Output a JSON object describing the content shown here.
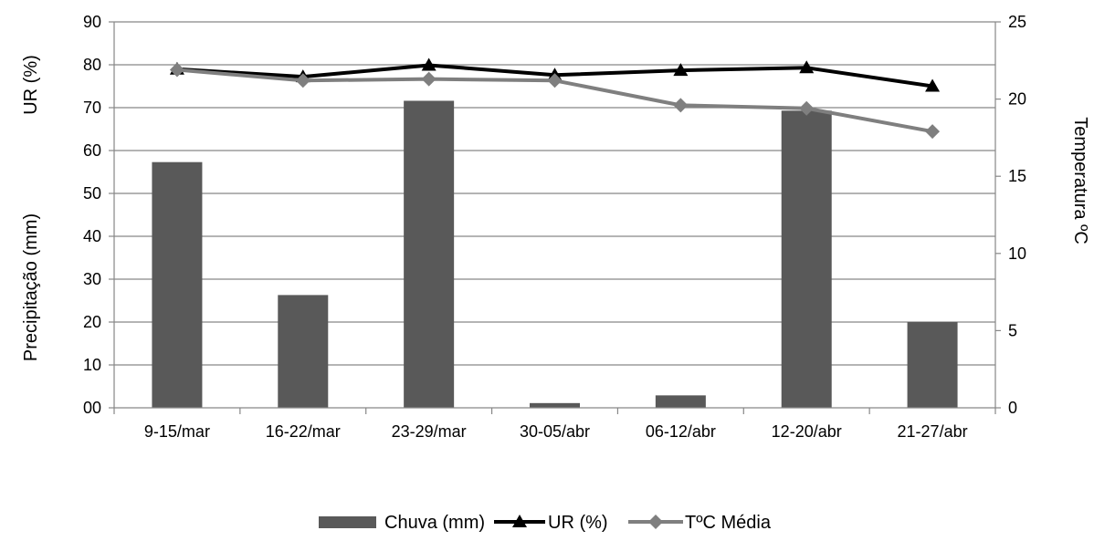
{
  "chart_data": {
    "type": "bar",
    "categories": [
      "9-15/mar",
      "16-22/mar",
      "23-29/mar",
      "30-05/abr",
      "06-12/abr",
      "12-20/abr",
      "21-27/abr"
    ],
    "series": [
      {
        "name": "Chuva (mm)",
        "type": "bar",
        "axis": "left",
        "color": "#595959",
        "values": [
          57.3,
          26.3,
          71.6,
          1.1,
          2.9,
          69.3,
          20.0
        ]
      },
      {
        "name": "UR (%)",
        "type": "line",
        "axis": "left",
        "marker": "triangle",
        "color": "#000000",
        "values": [
          79.0,
          77.2,
          79.9,
          77.6,
          78.7,
          79.3,
          75.0
        ]
      },
      {
        "name": "TºC Média",
        "type": "line",
        "axis": "right",
        "marker": "diamond",
        "color": "#7f7f7f",
        "values": [
          21.9,
          21.2,
          21.3,
          21.2,
          19.6,
          19.4,
          17.9
        ]
      }
    ],
    "y_left": {
      "ylim": [
        0,
        90
      ],
      "ticks": [
        "00",
        "10",
        "20",
        "30",
        "40",
        "50",
        "60",
        "70",
        "80",
        "90"
      ],
      "label_top": "UR (%)",
      "label_bottom": "Precipitação (mm)"
    },
    "y_right": {
      "ylim": [
        0,
        25
      ],
      "ticks": [
        "0",
        "5",
        "10",
        "15",
        "20",
        "25"
      ],
      "label": "Temperatura ºC"
    },
    "grid": true,
    "legend_position": "bottom"
  }
}
